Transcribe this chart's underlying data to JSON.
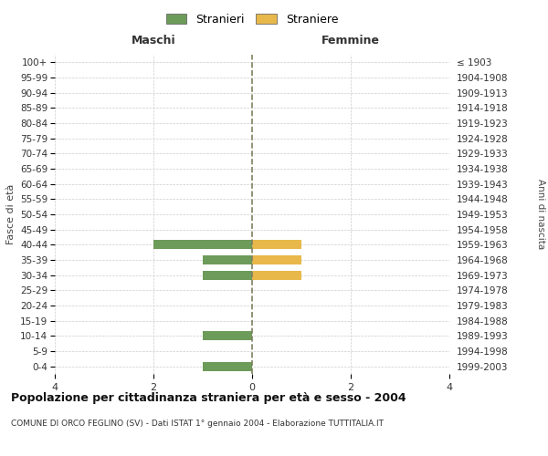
{
  "age_groups": [
    "100+",
    "95-99",
    "90-94",
    "85-89",
    "80-84",
    "75-79",
    "70-74",
    "65-69",
    "60-64",
    "55-59",
    "50-54",
    "45-49",
    "40-44",
    "35-39",
    "30-34",
    "25-29",
    "20-24",
    "15-19",
    "10-14",
    "5-9",
    "0-4"
  ],
  "birth_years": [
    "≤ 1903",
    "1904-1908",
    "1909-1913",
    "1914-1918",
    "1919-1923",
    "1924-1928",
    "1929-1933",
    "1934-1938",
    "1939-1943",
    "1944-1948",
    "1949-1953",
    "1954-1958",
    "1959-1963",
    "1964-1968",
    "1969-1973",
    "1974-1978",
    "1979-1983",
    "1984-1988",
    "1989-1993",
    "1994-1998",
    "1999-2003"
  ],
  "males": [
    0,
    0,
    0,
    0,
    0,
    0,
    0,
    0,
    0,
    0,
    0,
    0,
    -2,
    -1,
    -1,
    0,
    0,
    0,
    -1,
    0,
    -1
  ],
  "females": [
    0,
    0,
    0,
    0,
    0,
    0,
    0,
    0,
    0,
    0,
    0,
    0,
    1,
    1,
    1,
    0,
    0,
    0,
    0,
    0,
    0
  ],
  "male_color": "#6d9b5a",
  "female_color": "#e8b84b",
  "grid_color": "#cccccc",
  "center_line_color": "#808060",
  "bg_color": "#ffffff",
  "title": "Popolazione per cittadinanza straniera per età e sesso - 2004",
  "subtitle": "COMUNE DI ORCO FEGLINO (SV) - Dati ISTAT 1° gennaio 2004 - Elaborazione TUTTITALIA.IT",
  "legend_male": "Stranieri",
  "legend_female": "Straniere",
  "xlabel_left": "Maschi",
  "xlabel_right": "Femmine",
  "ylabel_left": "Fasce di età",
  "ylabel_right": "Anni di nascita",
  "xlim": 4,
  "xticks": [
    -4,
    -2,
    0,
    2,
    4
  ],
  "xticklabels": [
    "4",
    "2",
    "0",
    "2",
    "4"
  ]
}
